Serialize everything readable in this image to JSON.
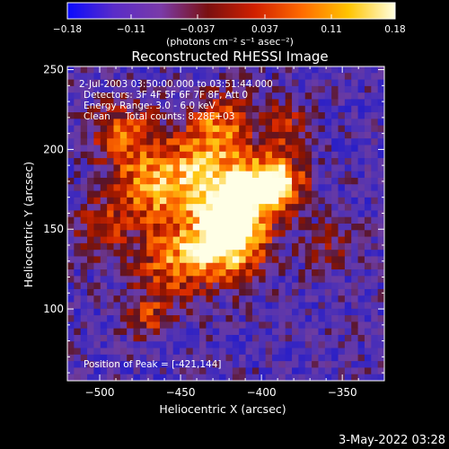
{
  "colorbar": {
    "tick_labels": [
      "-0.18",
      "-0.11",
      "-0.037",
      "0.037",
      "0.11",
      "0.18"
    ],
    "tick_values": [
      -0.18,
      -0.11,
      -0.037,
      0.037,
      0.11,
      0.18
    ],
    "range": [
      -0.18,
      0.18
    ],
    "unit_label": "(photons cm⁻² s⁻¹ asec⁻²)",
    "colors": [
      "#0a0aff",
      "#5a2cc8",
      "#7a3aa8",
      "#7a1010",
      "#d02000",
      "#ff6a00",
      "#ffc400",
      "#ffffe0"
    ]
  },
  "info": {
    "time_range": "2-Jul-2003 03:50:00.000 to 03:51:44.000",
    "detectors": "Detectors: 3F 4F 5F 6F 7F 8F, Att 0",
    "energy": "Energy Range: 3.0 - 6.0 keV",
    "clean": "Clean     Total counts: 8.28E+03",
    "peak": "Position of Peak = [-421,144]"
  },
  "footer": {
    "timestamp": "3-May-2022 03:28"
  },
  "chart_data": {
    "type": "heatmap",
    "title": "Reconstructed RHESSI Image",
    "xlabel": "Heliocentric X (arcsec)",
    "ylabel": "Heliocentric Y (arcsec)",
    "xlim": [
      -520,
      -324
    ],
    "ylim": [
      55,
      252
    ],
    "x_ticks": [
      -500,
      -450,
      -400,
      -350
    ],
    "y_ticks": [
      100,
      150,
      200,
      250
    ],
    "x_tick_labels": [
      "−500",
      "−450",
      "−400",
      "−350"
    ],
    "y_tick_labels": [
      "100",
      "150",
      "200",
      "250"
    ],
    "peak": [
      -421,
      144
    ],
    "grid": false
  }
}
